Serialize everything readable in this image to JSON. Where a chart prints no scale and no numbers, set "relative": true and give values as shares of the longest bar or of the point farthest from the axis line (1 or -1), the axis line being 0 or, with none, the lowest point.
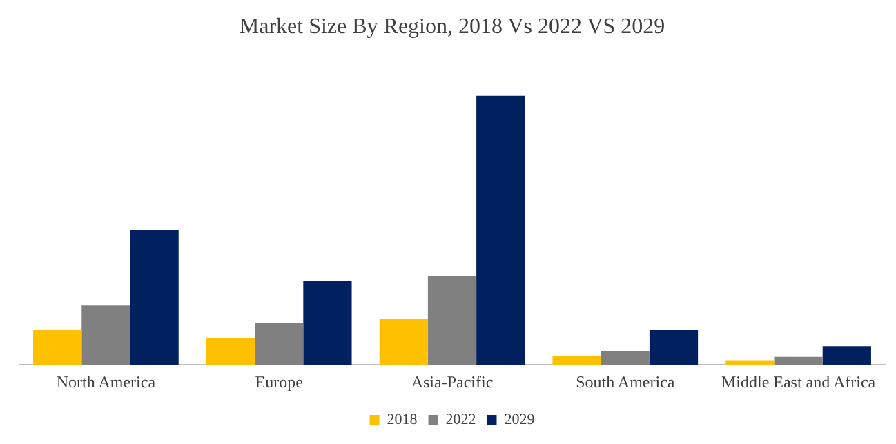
{
  "chart_data": {
    "type": "bar",
    "title": "Market Size By Region, 2018 Vs 2022 VS 2029",
    "relative": true,
    "categories": [
      "North America",
      "Europe",
      "Asia-Pacific",
      "South America",
      "Middle East and Africa"
    ],
    "series": [
      {
        "name": "2018",
        "color": "#ffc000",
        "values": [
          0.13,
          0.1,
          0.17,
          0.034,
          0.017
        ]
      },
      {
        "name": "2022",
        "color": "#808080",
        "values": [
          0.22,
          0.155,
          0.33,
          0.052,
          0.029
        ]
      },
      {
        "name": "2029",
        "color": "#002060",
        "values": [
          0.5,
          0.31,
          1,
          0.13,
          0.069
        ]
      }
    ],
    "grid": false,
    "legend": "bottom"
  }
}
